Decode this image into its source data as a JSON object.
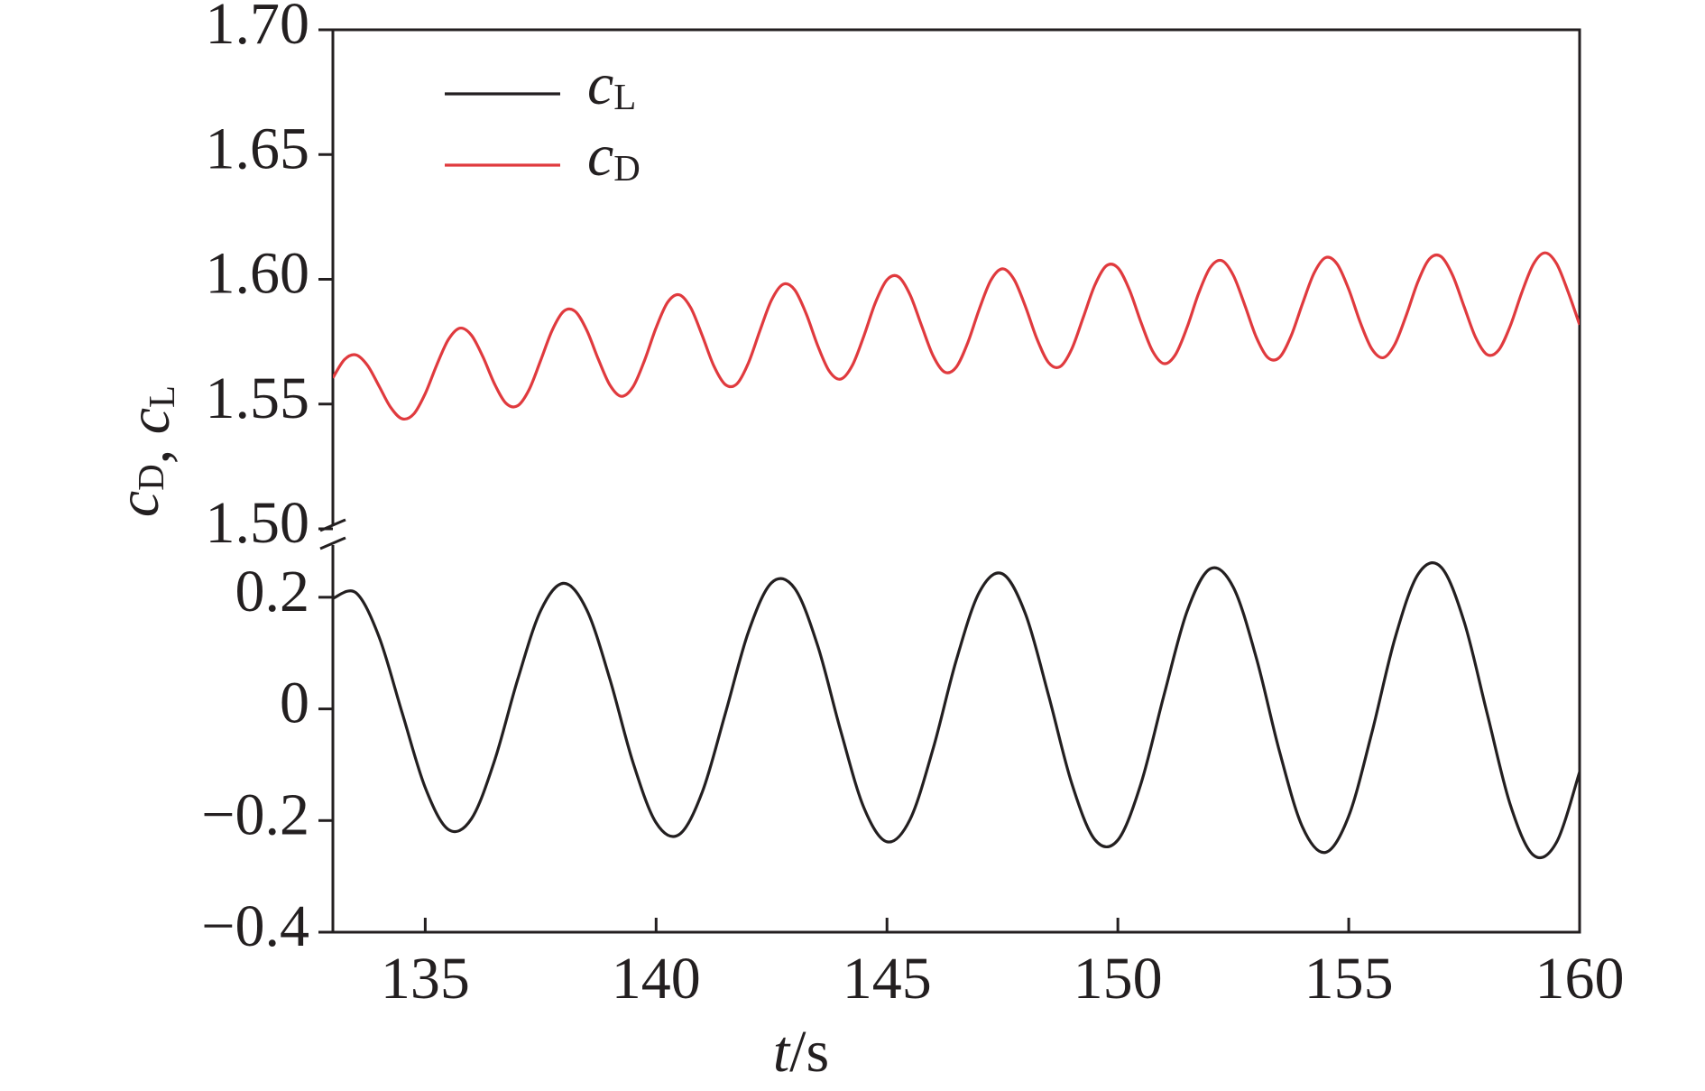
{
  "chart_data": {
    "type": "line",
    "xlabel": "t/s",
    "ylabel": "cD, cL",
    "xlim": [
      133,
      160
    ],
    "xticks": [
      135,
      140,
      145,
      150,
      155,
      160
    ],
    "ylim": [
      -0.4,
      0.3
    ],
    "yticks": [
      {
        "value": -0.4,
        "label": "−0.4"
      },
      {
        "value": -0.2,
        "label": "−0.2"
      },
      0,
      0.2
    ],
    "y2lim": [
      1.5,
      1.7
    ],
    "y2ticks": [
      {
        "value": 1.5,
        "label": "1.50"
      },
      1.55,
      {
        "value": 1.6,
        "label": "1.60"
      },
      1.65,
      {
        "value": 1.7,
        "label": "1.70"
      }
    ],
    "legend": "upper left",
    "series": [
      {
        "name": "cL",
        "color": "#231f20",
        "x": [
          133,
          133.5,
          134,
          134.5,
          135,
          135.5,
          136,
          136.5,
          137,
          137.5,
          138,
          138.5,
          139,
          139.5,
          140,
          140.5,
          141,
          141.5,
          142,
          142.5,
          143,
          143.5,
          144,
          144.5,
          145,
          145.5,
          146,
          146.5,
          147,
          147.5,
          148,
          148.5,
          149,
          149.5,
          150,
          150.5,
          151,
          151.5,
          152,
          152.5,
          153,
          153.5,
          154,
          154.5,
          155,
          155.5,
          156,
          156.5,
          157,
          157.5,
          158,
          158.5,
          159,
          159.5,
          160
        ],
        "values": [
          0.198,
          0.208,
          0.129,
          -0.007,
          -0.141,
          -0.216,
          -0.197,
          -0.093,
          0.052,
          0.176,
          0.225,
          0.177,
          0.053,
          -0.096,
          -0.204,
          -0.225,
          -0.149,
          -0.008,
          0.138,
          0.226,
          0.216,
          0.113,
          -0.04,
          -0.177,
          -0.238,
          -0.198,
          -0.071,
          0.087,
          0.209,
          0.242,
          0.17,
          0.024,
          -0.133,
          -0.234,
          -0.235,
          -0.134,
          0.025,
          0.175,
          0.251,
          0.218,
          0.091,
          -0.076,
          -0.212,
          -0.257,
          -0.192,
          -0.043,
          0.126,
          0.241,
          0.254,
          0.156,
          -0.009,
          -0.172,
          -0.262,
          -0.239,
          -0.113
        ]
      },
      {
        "name": "cD",
        "color": "#e03a3e",
        "axis": "y2",
        "x": [
          133,
          133.25,
          133.5,
          133.75,
          134,
          134.25,
          134.5,
          134.75,
          135,
          135.25,
          135.5,
          135.75,
          136,
          136.25,
          136.5,
          136.75,
          137,
          137.25,
          137.5,
          137.75,
          138,
          138.25,
          138.5,
          138.75,
          139,
          139.25,
          139.5,
          139.75,
          140,
          140.25,
          140.5,
          140.75,
          141,
          141.25,
          141.5,
          141.75,
          142,
          142.25,
          142.5,
          142.75,
          143,
          143.25,
          143.5,
          143.75,
          144,
          144.25,
          144.5,
          144.75,
          145,
          145.25,
          145.5,
          145.75,
          146,
          146.25,
          146.5,
          146.75,
          147,
          147.25,
          147.5,
          147.75,
          148,
          148.25,
          148.5,
          148.75,
          149,
          149.25,
          149.5,
          149.75,
          150,
          150.25,
          150.5,
          150.75,
          151,
          151.25,
          151.5,
          151.75,
          152,
          152.25,
          152.5,
          152.75,
          153,
          153.25,
          153.5,
          153.75,
          154,
          154.25,
          154.5,
          154.75,
          155,
          155.25,
          155.5,
          155.75,
          156,
          156.25,
          156.5,
          156.75,
          157,
          157.25,
          157.5,
          157.75,
          158,
          158.25,
          158.5,
          158.75,
          159,
          159.25,
          159.5,
          159.75,
          160
        ],
        "values": [
          1.5605,
          1.5678,
          1.5697,
          1.5655,
          1.5572,
          1.5487,
          1.5441,
          1.546,
          1.5542,
          1.5657,
          1.5758,
          1.5804,
          1.5776,
          1.5689,
          1.5581,
          1.5503,
          1.5493,
          1.5558,
          1.5675,
          1.5796,
          1.5872,
          1.5871,
          1.5795,
          1.5679,
          1.5576,
          1.5531,
          1.5569,
          1.5675,
          1.5806,
          1.5908,
          1.5938,
          1.5886,
          1.5774,
          1.5653,
          1.5578,
          1.5581,
          1.5665,
          1.5795,
          1.5917,
          1.598,
          1.5958,
          1.5862,
          1.5734,
          1.5632,
          1.56,
          1.5655,
          1.5773,
          1.5907,
          1.5998,
          1.601,
          1.5938,
          1.5814,
          1.5693,
          1.5628,
          1.5648,
          1.5746,
          1.5881,
          1.5996,
          1.6042,
          1.6,
          1.589,
          1.576,
          1.5666,
          1.565,
          1.572,
          1.5847,
          1.5976,
          1.6054,
          1.6046,
          1.5958,
          1.5828,
          1.5713,
          1.5662,
          1.5699,
          1.5808,
          1.5944,
          1.6047,
          1.6075,
          1.6016,
          1.5896,
          1.5767,
          1.5686,
          1.5687,
          1.5772,
          1.5903,
          1.6025,
          1.6087,
          1.6061,
          1.596,
          1.5827,
          1.5721,
          1.5686,
          1.574,
          1.5858,
          1.5991,
          1.6082,
          1.6091,
          1.6016,
          1.589,
          1.5766,
          1.5698,
          1.5717,
          1.5814,
          1.5948,
          1.6061,
          1.6106,
          1.6063,
          1.595,
          1.5818
        ]
      }
    ]
  }
}
